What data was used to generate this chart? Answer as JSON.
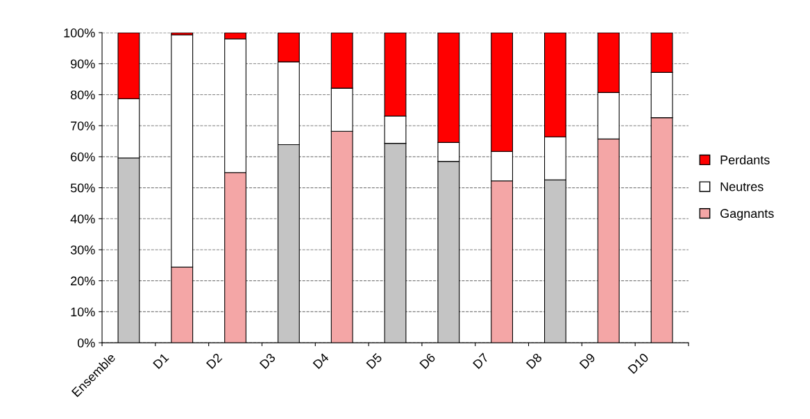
{
  "chart_data": {
    "type": "bar",
    "stacked": true,
    "categories": [
      "Ensemble",
      "D1",
      "D2",
      "D3",
      "D4",
      "D5",
      "D6",
      "D7",
      "D8",
      "D9",
      "D10"
    ],
    "series": [
      {
        "name": "Gagnants",
        "color": "#f4a6a6",
        "colors": [
          "#c4c4c4",
          "#f4a6a6",
          "#f4a6a6",
          "#c4c4c4",
          "#f4a6a6",
          "#c4c4c4",
          "#c4c4c4",
          "#f4a6a6",
          "#c4c4c4",
          "#f4a6a6",
          "#f4a6a6"
        ],
        "values": [
          59.6,
          24.4,
          54.9,
          63.9,
          68.2,
          64.3,
          58.5,
          52.2,
          52.5,
          65.7,
          72.6
        ]
      },
      {
        "name": "Neutres",
        "color": "#ffffff",
        "values": [
          19.1,
          74.9,
          43.1,
          26.7,
          13.9,
          8.8,
          6.1,
          9.5,
          13.9,
          15.0,
          14.6
        ]
      },
      {
        "name": "Perdants",
        "color": "#ff0000",
        "values": [
          21.3,
          0.7,
          2.0,
          9.4,
          17.9,
          26.9,
          35.4,
          38.3,
          33.6,
          19.3,
          12.8
        ]
      }
    ],
    "ylim": [
      0,
      100
    ],
    "yticks": [
      {
        "value": 0,
        "label": "0%"
      },
      {
        "value": 10,
        "label": "10%"
      },
      {
        "value": 20,
        "label": "20%"
      },
      {
        "value": 30,
        "label": "30%"
      },
      {
        "value": 40,
        "label": "40%"
      },
      {
        "value": 50,
        "label": "50%"
      },
      {
        "value": 60,
        "label": "60%"
      },
      {
        "value": 70,
        "label": "70%"
      },
      {
        "value": 80,
        "label": "80%"
      },
      {
        "value": 90,
        "label": "90%"
      },
      {
        "value": 100,
        "label": "100%"
      }
    ],
    "grid": "y",
    "line_style": "dashed",
    "legend": "right"
  }
}
